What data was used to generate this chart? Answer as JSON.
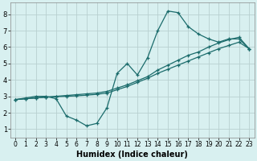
{
  "xlabel": "Humidex (Indice chaleur)",
  "bg_color": "#d8f0f0",
  "grid_color": "#b8d0d0",
  "line_color": "#1a6b6b",
  "xlim": [
    -0.5,
    23.5
  ],
  "ylim": [
    0.5,
    8.7
  ],
  "xticks": [
    0,
    1,
    2,
    3,
    4,
    5,
    6,
    7,
    8,
    9,
    10,
    11,
    12,
    13,
    14,
    15,
    16,
    17,
    18,
    19,
    20,
    21,
    22,
    23
  ],
  "yticks": [
    1,
    2,
    3,
    4,
    5,
    6,
    7,
    8
  ],
  "line1_x": [
    0,
    1,
    2,
    3,
    4,
    5,
    6,
    7,
    8,
    9,
    10,
    11,
    12,
    13,
    14,
    15,
    16,
    17,
    18,
    19,
    20,
    21,
    22,
    23
  ],
  "line1_y": [
    2.8,
    2.9,
    3.0,
    3.0,
    2.85,
    1.8,
    1.55,
    1.2,
    1.35,
    2.3,
    4.4,
    5.0,
    4.3,
    5.35,
    7.0,
    8.2,
    8.1,
    7.25,
    6.8,
    6.5,
    6.3,
    6.5,
    6.5,
    5.9
  ],
  "line2_x": [
    0,
    1,
    2,
    3,
    4,
    5,
    6,
    7,
    8,
    9,
    10,
    11,
    12,
    13,
    14,
    15,
    16,
    17,
    18,
    19,
    20,
    21,
    22,
    23
  ],
  "line2_y": [
    2.8,
    2.85,
    2.9,
    2.95,
    3.0,
    3.05,
    3.1,
    3.15,
    3.2,
    3.3,
    3.5,
    3.7,
    3.95,
    4.2,
    4.6,
    4.9,
    5.2,
    5.5,
    5.7,
    6.0,
    6.25,
    6.45,
    6.6,
    5.9
  ],
  "line3_x": [
    0,
    1,
    2,
    3,
    4,
    5,
    6,
    7,
    8,
    9,
    10,
    11,
    12,
    13,
    14,
    15,
    16,
    17,
    18,
    19,
    20,
    21,
    22,
    23
  ],
  "line3_y": [
    2.8,
    2.85,
    2.9,
    2.95,
    2.98,
    3.0,
    3.03,
    3.07,
    3.12,
    3.2,
    3.4,
    3.6,
    3.85,
    4.1,
    4.4,
    4.65,
    4.9,
    5.15,
    5.4,
    5.65,
    5.9,
    6.1,
    6.3,
    5.9
  ]
}
